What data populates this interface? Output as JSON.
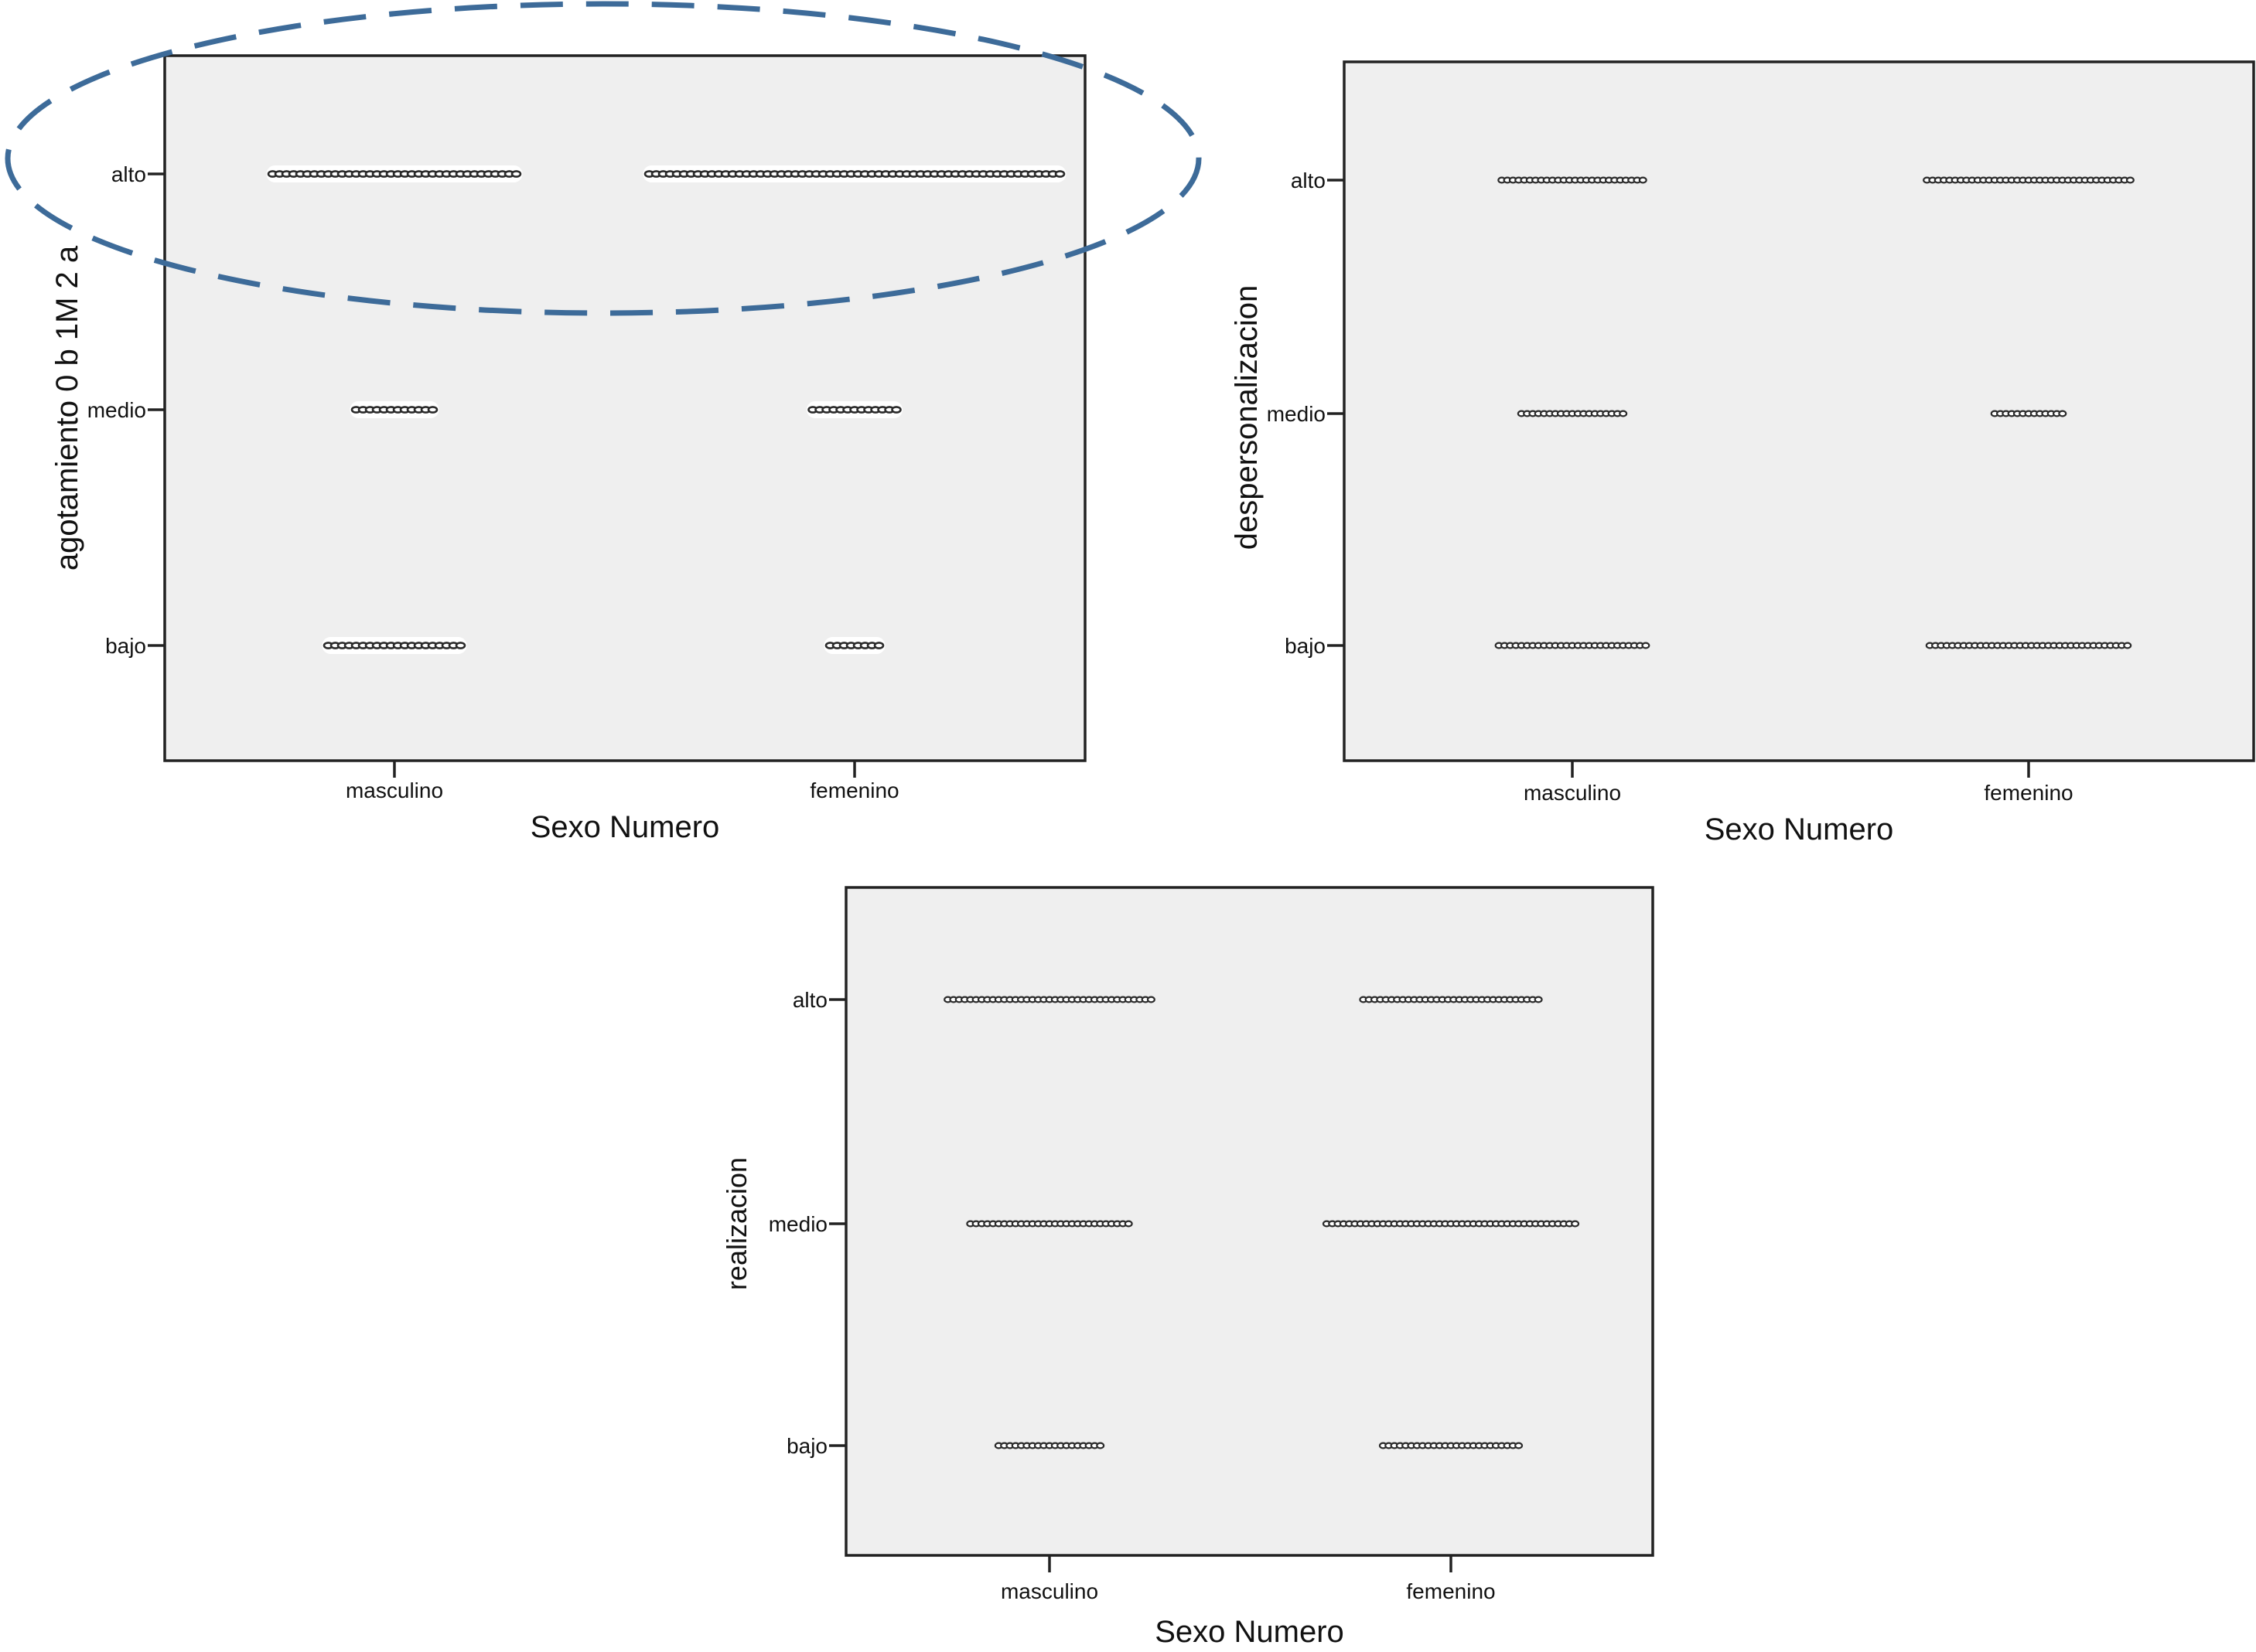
{
  "chart_data": [
    {
      "type": "scatter",
      "subtype": "dot-plot",
      "xlabel": "Sexo Numero",
      "ylabel": "agotamiento 0 b 1M 2 a",
      "categories_x": [
        "masculino",
        "femenino"
      ],
      "categories_y": [
        "alto",
        "medio",
        "bajo"
      ],
      "series": [
        {
          "x": "masculino",
          "y": "alto",
          "count": 36
        },
        {
          "x": "femenino",
          "y": "alto",
          "count": 60
        },
        {
          "x": "masculino",
          "y": "medio",
          "count": 12
        },
        {
          "x": "femenino",
          "y": "medio",
          "count": 13
        },
        {
          "x": "masculino",
          "y": "bajo",
          "count": 20
        },
        {
          "x": "femenino",
          "y": "bajo",
          "count": 8
        }
      ],
      "annotation": "dashed-ellipse-highlight-alto",
      "annotation_color": "#3d6b99",
      "grid": false,
      "background": "#efefef"
    },
    {
      "type": "scatter",
      "subtype": "dot-plot",
      "xlabel": "Sexo Numero",
      "ylabel": "despersonalizacion",
      "categories_x": [
        "masculino",
        "femenino"
      ],
      "categories_y": [
        "alto",
        "medio",
        "bajo"
      ],
      "series": [
        {
          "x": "masculino",
          "y": "alto",
          "count": 26
        },
        {
          "x": "femenino",
          "y": "alto",
          "count": 37
        },
        {
          "x": "masculino",
          "y": "medio",
          "count": 19
        },
        {
          "x": "femenino",
          "y": "medio",
          "count": 13
        },
        {
          "x": "masculino",
          "y": "bajo",
          "count": 27
        },
        {
          "x": "femenino",
          "y": "bajo",
          "count": 36
        }
      ],
      "grid": false,
      "background": "#efefef"
    },
    {
      "type": "scatter",
      "subtype": "dot-plot",
      "xlabel": "Sexo Numero",
      "ylabel": "realizacion",
      "categories_x": [
        "masculino",
        "femenino"
      ],
      "categories_y": [
        "alto",
        "medio",
        "bajo"
      ],
      "series": [
        {
          "x": "masculino",
          "y": "alto",
          "count": 37
        },
        {
          "x": "femenino",
          "y": "alto",
          "count": 32
        },
        {
          "x": "masculino",
          "y": "medio",
          "count": 29
        },
        {
          "x": "femenino",
          "y": "medio",
          "count": 45
        },
        {
          "x": "masculino",
          "y": "bajo",
          "count": 19
        },
        {
          "x": "femenino",
          "y": "bajo",
          "count": 25
        }
      ],
      "grid": false,
      "background": "#efefef"
    }
  ]
}
